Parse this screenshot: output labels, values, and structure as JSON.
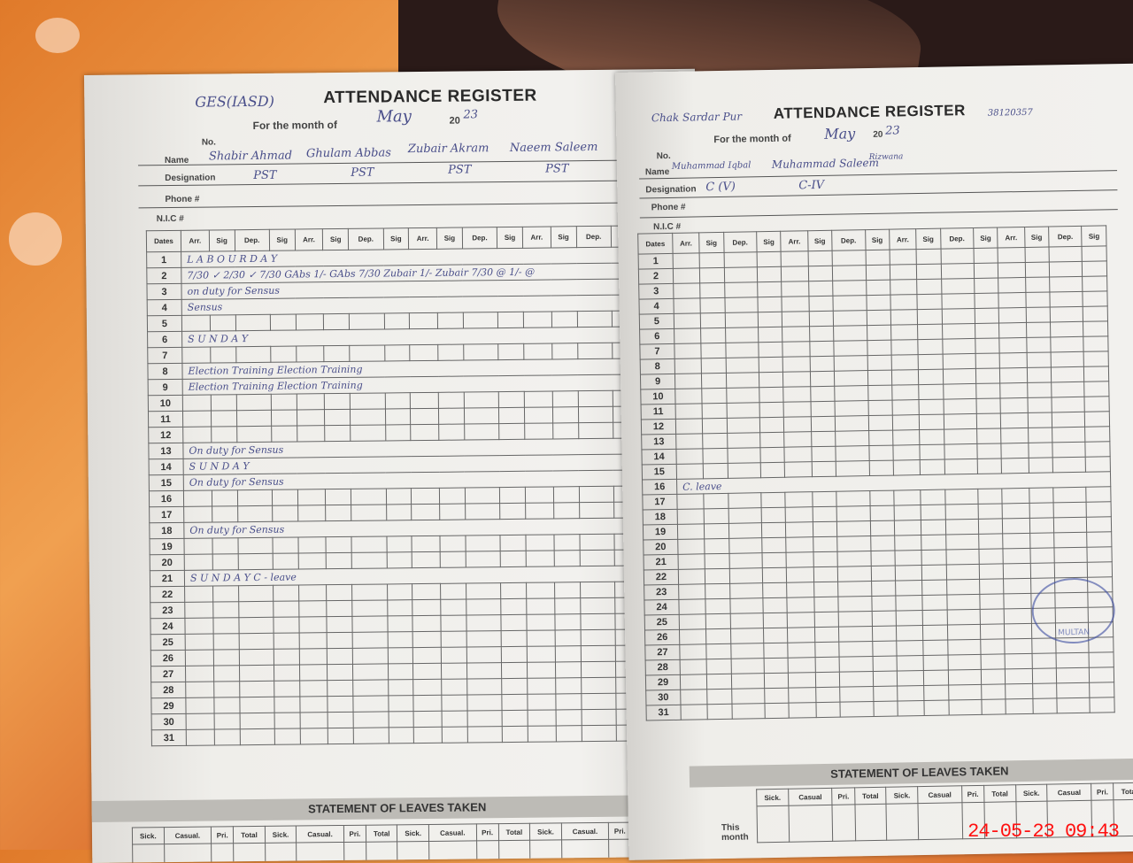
{
  "left_page": {
    "school_note": "GES(IASD)",
    "title": "ATTENDANCE REGISTER",
    "month_label": "For the month of",
    "month_value": "May",
    "year_prefix": "20",
    "year_value": "23",
    "no_label": "No.",
    "field_labels": [
      "Name",
      "Designation",
      "Phone #",
      "N.I.C #"
    ],
    "names": [
      "Shabir Ahmad",
      "Ghulam Abbas",
      "Zubair Akram",
      "Naeem Saleem"
    ],
    "designations": [
      "PST",
      "PST",
      "PST",
      "PST"
    ],
    "column_headers": [
      "Dates",
      "Arr.",
      "Sig",
      "Dep.",
      "Sig"
    ],
    "row_notes": [
      {
        "date": 1,
        "text": "L   A   B   O   U   R      D   A   Y"
      },
      {
        "date": 2,
        "text": "7/30  ✓  2/30  ✓    7/30  GAbs  1/-  GAbs    7/30  Zubair  1/-  Zubair    7/30  @  1/-  @"
      },
      {
        "date": 3,
        "text": "on duty for Sensus"
      },
      {
        "date": 4,
        "text": "Sensus"
      },
      {
        "date": 6,
        "text": "S   U   N   D   A   Y"
      },
      {
        "date": 8,
        "text": "Election Training          Election Training"
      },
      {
        "date": 9,
        "text": "Election Training    Election Training"
      },
      {
        "date": 13,
        "text": "On duty for Sensus"
      },
      {
        "date": 14,
        "text": "S   U   N   D   A   Y"
      },
      {
        "date": 15,
        "text": "On duty for Sensus"
      },
      {
        "date": 18,
        "text": "On duty for Sensus"
      },
      {
        "date": 21,
        "text": "S   U   N   D   A   Y              C - leave"
      }
    ],
    "dates_total": 31,
    "leave_title": "STATEMENT OF LEAVES TAKEN",
    "leave_headers": [
      "Sick.",
      "Casual.",
      "Pri.",
      "Total"
    ]
  },
  "right_page": {
    "school_note": "Chak Sardar Pur",
    "code_note": "38120357",
    "title": "ATTENDANCE REGISTER",
    "month_label": "For the month of",
    "month_value": "May",
    "year_prefix": "20",
    "year_value": "23",
    "no_label": "No.",
    "field_labels": [
      "Name",
      "Designation",
      "Phone #",
      "N.I.C #"
    ],
    "names": [
      "Muhammad Iqbal",
      "Muhammad Saleem",
      "Rizwana"
    ],
    "designations": [
      "C (V)",
      "C-IV",
      ""
    ],
    "column_headers": [
      "Dates",
      "Arr.",
      "Sig",
      "Dep.",
      "Sig"
    ],
    "row_notes": [
      {
        "date": 16,
        "text": "C. leave"
      }
    ],
    "dates_total": 31,
    "leave_title": "STATEMENT OF LEAVES TAKEN",
    "leave_headers": [
      "Sick.",
      "Casual",
      "Pri.",
      "Total"
    ],
    "this_month_label": "This month"
  },
  "stamp_text": "MULTAN",
  "timestamp": "24-05-23  09:43",
  "colors": {
    "ink": "#4a4f8a",
    "timestamp": "#ff1010",
    "fabric": "#e07a2a"
  }
}
